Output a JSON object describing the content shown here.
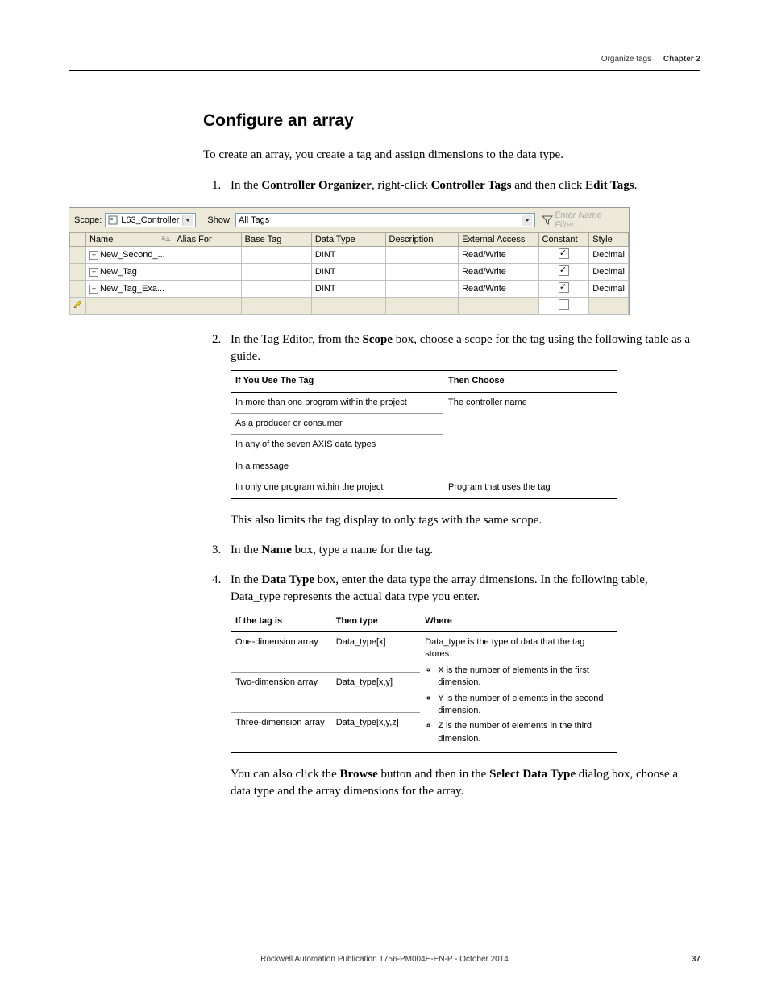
{
  "header": {
    "section": "Organize tags",
    "chapter": "Chapter 2"
  },
  "title": "Configure an array",
  "intro": "To create an array, you create a tag and assign dimensions to the data type.",
  "step1": {
    "prefix": "In the ",
    "bold1": "Controller Organizer",
    "mid": ", right-click ",
    "bold2": "Controller Tags",
    "tail": " and then click ",
    "bold3": "Edit Tags",
    "end": "."
  },
  "tag_editor": {
    "scope_label": "Scope:",
    "scope_value": "L63_Controller",
    "show_label": "Show:",
    "show_value": "All Tags",
    "filter_placeholder": "Enter Name Filter...",
    "columns": [
      "Name",
      "Alias For",
      "Base Tag",
      "Data Type",
      "Description",
      "External Access",
      "Constant",
      "Style"
    ],
    "rows": [
      {
        "name": "New_Second_...",
        "datatype": "DINT",
        "access": "Read/Write",
        "constant": true,
        "style": "Decimal"
      },
      {
        "name": "New_Tag",
        "datatype": "DINT",
        "access": "Read/Write",
        "constant": true,
        "style": "Decimal"
      },
      {
        "name": "New_Tag_Exa...",
        "datatype": "DINT",
        "access": "Read/Write",
        "constant": true,
        "style": "Decimal"
      }
    ]
  },
  "step2": {
    "prefix": "In the Tag Editor, from the ",
    "bold1": "Scope",
    "tail": " box, choose a scope for the tag using the following table as a guide."
  },
  "scope_table": {
    "headers": [
      "If You Use The Tag",
      "Then Choose"
    ],
    "rows": [
      [
        "In more than one program within the project",
        "The controller name"
      ],
      [
        "As a producer or consumer",
        ""
      ],
      [
        "In any of the seven AXIS data types",
        ""
      ],
      [
        "In a message",
        ""
      ],
      [
        "In only one program within the project",
        "Program that uses the tag"
      ]
    ]
  },
  "scope_note": "This also limits the tag display to only tags with the same scope.",
  "step3": {
    "prefix": "In the ",
    "bold1": "Name",
    "tail": " box, type a name for the tag."
  },
  "step4": {
    "prefix": "In the ",
    "bold1": "Data Type",
    "tail": " box, enter the data type the array dimensions. In the following table, Data_type represents the actual data type you enter."
  },
  "datatype_table": {
    "headers": [
      "If the tag is",
      "Then type",
      "Where"
    ],
    "rows": [
      {
        "c1": "One-dimension array",
        "c2": "Data_type[x]"
      },
      {
        "c1": "Two-dimension array",
        "c2": "Data_type[x,y]"
      },
      {
        "c1": "Three-dimension array",
        "c2": "Data_type[x,y,z]"
      }
    ],
    "where_intro": "Data_type is the type of data that the tag stores.",
    "where_bullets": [
      "X is the number of elements in the first dimension.",
      "Y is the number of elements in the second dimension.",
      "Z is the number of elements in the third dimension."
    ]
  },
  "browse_note": {
    "p1": "You can also click the ",
    "b1": "Browse",
    "p2": " button and then in the ",
    "b2": "Select Data Type",
    "p3": " dialog box, choose a data type and the array dimensions for the array."
  },
  "footer": {
    "text": "Rockwell Automation Publication 1756-PM004E-EN-P - October 2014",
    "page": "37"
  }
}
